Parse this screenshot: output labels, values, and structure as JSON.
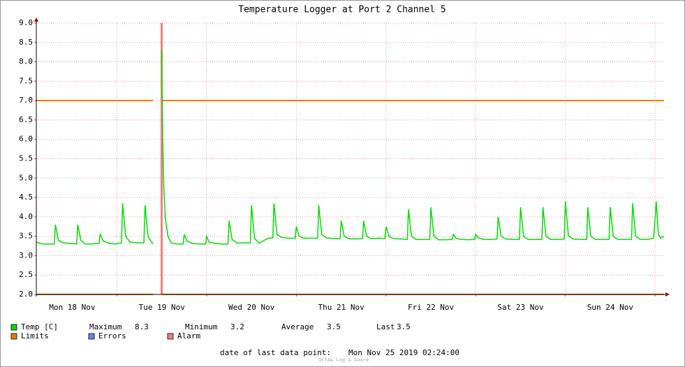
{
  "chart_data": {
    "type": "line",
    "title": "Temperature Logger at Port 2 Channel 5",
    "xlim": [
      2.4,
      170.4
    ],
    "xticks": [
      {
        "value": 12,
        "label": "Mon 18 Nov"
      },
      {
        "value": 36,
        "label": "Tue 19 Nov"
      },
      {
        "value": 60,
        "label": "Wed 20 Nov"
      },
      {
        "value": 84,
        "label": "Thu 21 Nov"
      },
      {
        "value": 108,
        "label": "Fri 22 Nov"
      },
      {
        "value": 132,
        "label": "Sat 23 Nov"
      },
      {
        "value": 156,
        "label": "Sun 24 Nov"
      }
    ],
    "xgrid": [
      24,
      48,
      72,
      96,
      120,
      144,
      168
    ],
    "ylim": [
      2,
      9
    ],
    "yticks": [
      {
        "value": 2,
        "label": "2.0"
      },
      {
        "value": 2.5,
        "label": "2.5"
      },
      {
        "value": 3,
        "label": "3.0"
      },
      {
        "value": 3.5,
        "label": "3.5"
      },
      {
        "value": 4,
        "label": "4.0"
      },
      {
        "value": 4.5,
        "label": "4.5"
      },
      {
        "value": 5,
        "label": "5.0"
      },
      {
        "value": 5.5,
        "label": "5.5"
      },
      {
        "value": 6,
        "label": "6.0"
      },
      {
        "value": 6.5,
        "label": "6.5"
      },
      {
        "value": 7,
        "label": "7.0"
      },
      {
        "value": 7.5,
        "label": "7.5"
      },
      {
        "value": 8,
        "label": "8.0"
      },
      {
        "value": 8.5,
        "label": "8.5"
      },
      {
        "value": 9,
        "label": "9.0"
      }
    ],
    "grid": true,
    "series": [
      {
        "name": "Temp [C]",
        "color": "#00e000",
        "x": [
          2.4,
          4,
          6,
          7.2,
          7.5,
          8.3,
          9.5,
          11,
          13.2,
          13.5,
          14.3,
          15.5,
          17,
          19.2,
          19.5,
          20.3,
          21.5,
          23.5,
          25.2,
          25.5,
          26.3,
          27.5,
          29.5,
          31.2,
          31.5,
          32.3,
          33.6,
          34.8,
          35.95,
          36.2,
          36.5,
          36.9,
          37.6,
          38.5,
          40,
          41.7,
          42,
          42.7,
          44,
          46,
          47.7,
          48,
          48.6,
          50,
          52,
          53.7,
          54,
          54.8,
          56,
          58,
          59.7,
          60,
          60.8,
          62,
          63.5,
          64.5,
          65.7,
          66,
          66.8,
          68,
          70,
          71.7,
          72,
          72.7,
          74,
          76,
          77.7,
          78,
          78.8,
          80,
          82,
          83.7,
          84,
          84.8,
          86,
          88,
          89.7,
          90,
          90.8,
          92,
          94,
          95.7,
          96,
          96.8,
          98,
          100,
          101.7,
          102,
          102.8,
          104,
          106,
          107.7,
          108,
          108.8,
          110,
          112,
          113.7,
          114,
          114.7,
          116,
          118,
          119.7,
          120,
          120.7,
          122,
          124,
          125.7,
          126,
          126.8,
          128,
          130,
          131.7,
          132,
          132.8,
          134,
          136,
          137.7,
          138,
          138.8,
          140,
          142,
          143.7,
          144,
          144.8,
          146,
          148,
          149.7,
          150,
          150.8,
          152,
          154,
          155.7,
          156,
          156.8,
          158,
          160,
          161.7,
          162,
          162.8,
          164,
          166,
          167.6,
          168,
          168.3,
          168.9,
          169.5,
          170.4
        ],
        "values": [
          3.35,
          3.3,
          3.3,
          3.3,
          3.8,
          3.4,
          3.33,
          3.32,
          3.3,
          3.8,
          3.4,
          3.3,
          3.3,
          3.32,
          3.55,
          3.38,
          3.33,
          3.3,
          3.33,
          4.35,
          3.5,
          3.35,
          3.33,
          3.33,
          4.3,
          3.5,
          3.3,
          null,
          8.3,
          6.2,
          4.8,
          4.0,
          3.5,
          3.33,
          3.3,
          3.3,
          3.55,
          3.38,
          3.32,
          3.3,
          3.3,
          3.5,
          3.35,
          3.32,
          3.3,
          3.3,
          3.9,
          3.42,
          3.33,
          3.33,
          3.33,
          4.3,
          3.45,
          3.32,
          3.4,
          3.45,
          3.46,
          4.35,
          3.55,
          3.47,
          3.45,
          3.45,
          3.75,
          3.5,
          3.45,
          3.45,
          3.45,
          4.3,
          3.55,
          3.46,
          3.44,
          3.44,
          3.9,
          3.5,
          3.44,
          3.43,
          3.44,
          3.9,
          3.5,
          3.44,
          3.45,
          3.44,
          3.75,
          3.5,
          3.44,
          3.43,
          3.42,
          4.2,
          3.5,
          3.42,
          3.42,
          3.42,
          4.25,
          3.5,
          3.41,
          3.41,
          3.42,
          3.55,
          3.45,
          3.42,
          3.41,
          3.42,
          3.55,
          3.46,
          3.42,
          3.42,
          3.43,
          4.0,
          3.5,
          3.43,
          3.42,
          3.42,
          4.25,
          3.5,
          3.42,
          3.42,
          3.42,
          4.25,
          3.5,
          3.42,
          3.42,
          3.43,
          4.4,
          3.52,
          3.43,
          3.42,
          3.42,
          4.25,
          3.5,
          3.42,
          3.42,
          3.42,
          4.25,
          3.5,
          3.42,
          3.42,
          3.42,
          4.35,
          3.5,
          3.42,
          3.42,
          3.45,
          3.95,
          4.4,
          3.55,
          3.45,
          3.5
        ]
      },
      {
        "name": "Limits",
        "color": "#f07800",
        "x": [
          2.4,
          33.6,
          34.8,
          35.95,
          170.4
        ],
        "values": [
          7,
          7,
          null,
          7,
          7
        ],
        "values_low": [
          2,
          2,
          null,
          2,
          2
        ]
      },
      {
        "name": "Errors",
        "color": "#7080f0",
        "x": [],
        "values": []
      },
      {
        "name": "Alarm",
        "color": "#f08080",
        "x": [
          35.95
        ]
      }
    ],
    "stats": [
      {
        "label": "Maximum",
        "value": 8.3
      },
      {
        "label": "Minimum",
        "value": 3.2
      },
      {
        "label": "Average",
        "value": 3.5
      },
      {
        "label": "Last",
        "value": 3.5
      }
    ],
    "footer_label": "date of last data point:",
    "footer_value": "Mon Nov 25 2019 02:24:00",
    "watermark": "OCTA& Log & Guard"
  }
}
